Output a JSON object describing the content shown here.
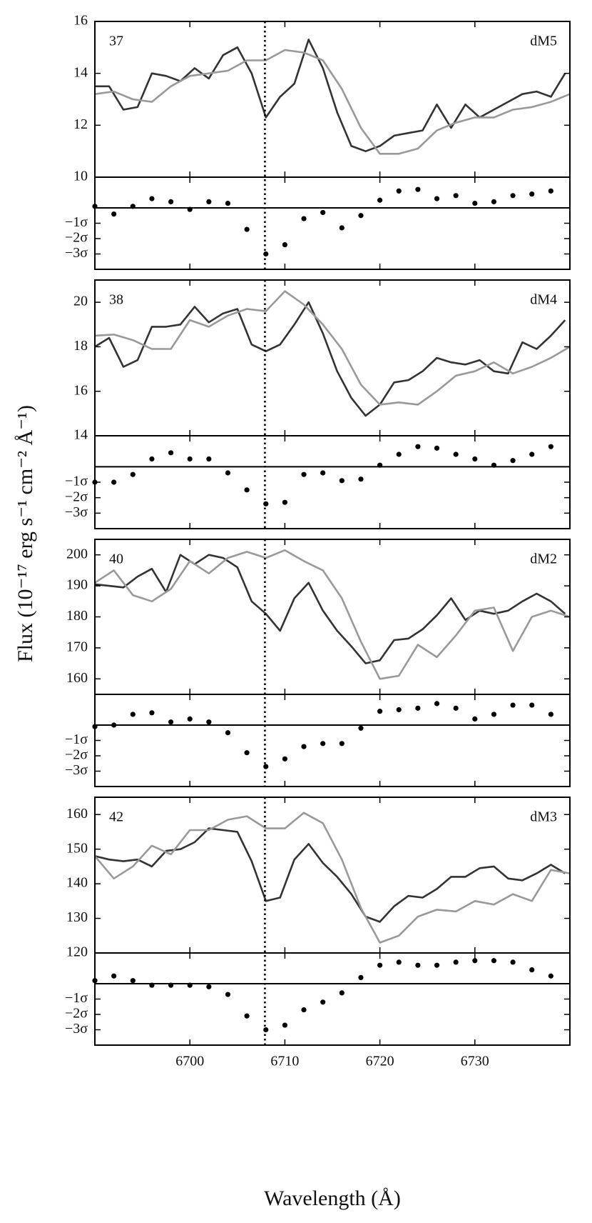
{
  "figure": {
    "xlabel": "Wavelength (Å)",
    "ylabel": "Flux (10⁻¹⁷ erg s⁻¹ cm⁻² Å⁻¹)"
  },
  "chart_data": [
    {
      "type": "line",
      "label": "37",
      "spectral_type": "dM5",
      "xlim": [
        6690,
        6740
      ],
      "ylim": [
        10,
        16
      ],
      "yticks": [
        10,
        12,
        14,
        16
      ],
      "xticks": [
        6700,
        6710,
        6720,
        6730
      ],
      "vline": 6707.9,
      "series": [
        {
          "color": "#333333",
          "x": [
            6690,
            6691.5,
            6693,
            6694.5,
            6696,
            6697.5,
            6699,
            6700.5,
            6702,
            6703.5,
            6705,
            6706.5,
            6708,
            6709.5,
            6711,
            6712.5,
            6714,
            6715.5,
            6717,
            6718.5,
            6720,
            6721.5,
            6723,
            6724.5,
            6726,
            6727.5,
            6729,
            6730.5,
            6732,
            6733.5,
            6735,
            6736.5,
            6738,
            6739.5
          ],
          "values": [
            13.5,
            13.5,
            12.6,
            12.7,
            14.0,
            13.9,
            13.7,
            14.2,
            13.8,
            14.7,
            15.0,
            14.0,
            12.3,
            13.1,
            13.6,
            15.3,
            14.2,
            12.5,
            11.2,
            11.0,
            11.2,
            11.6,
            11.7,
            11.8,
            12.8,
            11.9,
            12.8,
            12.3,
            12.6,
            12.9,
            13.2,
            13.3,
            13.1,
            14.0
          ]
        },
        {
          "color": "#999999",
          "x": [
            6690,
            6692,
            6694,
            6696,
            6698,
            6700,
            6702,
            6704,
            6706,
            6708,
            6710,
            6712,
            6714,
            6716,
            6718,
            6720,
            6722,
            6724,
            6726,
            6728,
            6730,
            6732,
            6734,
            6736,
            6738,
            6740
          ],
          "values": [
            13.2,
            13.3,
            13.0,
            12.9,
            13.5,
            13.9,
            14.0,
            14.1,
            14.5,
            14.5,
            14.9,
            14.8,
            14.5,
            13.4,
            11.9,
            10.9,
            10.9,
            11.1,
            11.8,
            12.1,
            12.3,
            12.3,
            12.6,
            12.7,
            12.9,
            13.2
          ]
        }
      ],
      "residuals": {
        "type": "scatter",
        "color": "#000000",
        "ylim": [
          -4,
          2
        ],
        "yticks": [
          {
            "value": -1,
            "label": "−1σ"
          },
          {
            "value": -2,
            "label": "−2σ"
          },
          {
            "value": -3,
            "label": "−3σ"
          }
        ],
        "x": [
          6690,
          6692,
          6694,
          6696,
          6698,
          6700,
          6702,
          6704,
          6706,
          6708,
          6710,
          6712,
          6714,
          6716,
          6718,
          6720,
          6722,
          6724,
          6726,
          6728,
          6730,
          6732,
          6734,
          6736,
          6738
        ],
        "values": [
          0.1,
          -0.4,
          0.1,
          0.6,
          0.4,
          -0.1,
          0.4,
          0.3,
          -1.4,
          -3.0,
          -2.4,
          -0.7,
          -0.3,
          -1.3,
          -0.5,
          0.5,
          1.1,
          1.2,
          0.6,
          0.8,
          0.3,
          0.4,
          0.8,
          0.9,
          1.1
        ]
      }
    },
    {
      "type": "line",
      "label": "38",
      "spectral_type": "dM4",
      "xlim": [
        6690,
        6740
      ],
      "ylim": [
        14,
        21
      ],
      "yticks": [
        14,
        16,
        18,
        20
      ],
      "xticks": [
        6700,
        6710,
        6720,
        6730
      ],
      "vline": 6707.9,
      "series": [
        {
          "color": "#333333",
          "x": [
            6690,
            6691.5,
            6693,
            6694.5,
            6696,
            6697.5,
            6699,
            6700.5,
            6702,
            6703.5,
            6705,
            6706.5,
            6708,
            6709.5,
            6711,
            6712.5,
            6714,
            6715.5,
            6717,
            6718.5,
            6720,
            6721.5,
            6723,
            6724.5,
            6726,
            6727.5,
            6729,
            6730.5,
            6732,
            6733.5,
            6735,
            6736.5,
            6738,
            6739.5
          ],
          "values": [
            18.0,
            18.4,
            17.1,
            17.4,
            18.9,
            18.9,
            19.0,
            19.8,
            19.1,
            19.5,
            19.7,
            18.1,
            17.8,
            18.1,
            19.0,
            20.0,
            18.6,
            16.9,
            15.7,
            14.9,
            15.4,
            16.4,
            16.5,
            16.9,
            17.5,
            17.3,
            17.2,
            17.4,
            16.9,
            16.8,
            18.2,
            17.9,
            18.5,
            19.2
          ]
        },
        {
          "color": "#999999",
          "x": [
            6690,
            6692,
            6694,
            6696,
            6698,
            6700,
            6702,
            6704,
            6706,
            6708,
            6710,
            6712,
            6714,
            6716,
            6718,
            6720,
            6722,
            6724,
            6726,
            6728,
            6730,
            6732,
            6734,
            6736,
            6738,
            6740
          ],
          "values": [
            18.5,
            18.55,
            18.3,
            17.9,
            17.9,
            19.2,
            18.9,
            19.4,
            19.7,
            19.6,
            20.5,
            19.9,
            19.0,
            17.9,
            16.3,
            15.4,
            15.5,
            15.4,
            16.0,
            16.7,
            16.9,
            17.3,
            16.8,
            17.1,
            17.5,
            18.0
          ]
        }
      ],
      "residuals": {
        "type": "scatter",
        "color": "#000000",
        "ylim": [
          -4,
          2
        ],
        "yticks": [
          {
            "value": -1,
            "label": "−1σ"
          },
          {
            "value": -2,
            "label": "−2σ"
          },
          {
            "value": -3,
            "label": "−3σ"
          }
        ],
        "x": [
          6690,
          6692,
          6694,
          6696,
          6698,
          6700,
          6702,
          6704,
          6706,
          6708,
          6710,
          6712,
          6714,
          6716,
          6718,
          6720,
          6722,
          6724,
          6726,
          6728,
          6730,
          6732,
          6734,
          6736,
          6738
        ],
        "values": [
          -1.0,
          -1.0,
          -0.5,
          0.5,
          0.9,
          0.5,
          0.5,
          -0.4,
          -1.5,
          -2.4,
          -2.3,
          -0.5,
          -0.4,
          -0.9,
          -0.8,
          0.1,
          0.8,
          1.3,
          1.2,
          0.8,
          0.5,
          0.1,
          0.4,
          0.8,
          1.3
        ]
      }
    },
    {
      "type": "line",
      "label": "40",
      "spectral_type": "dM2",
      "xlim": [
        6690,
        6740
      ],
      "ylim": [
        155,
        205
      ],
      "yticks": [
        160,
        170,
        180,
        190,
        200
      ],
      "xticks": [
        6700,
        6710,
        6720,
        6730
      ],
      "vline": 6707.9,
      "series": [
        {
          "color": "#333333",
          "x": [
            6690,
            6691.5,
            6693,
            6694.5,
            6696,
            6697.5,
            6699,
            6700.5,
            6702,
            6703.5,
            6705,
            6706.5,
            6708,
            6709.5,
            6711,
            6712.5,
            6714,
            6715.5,
            6717,
            6718.5,
            6720,
            6721.5,
            6723,
            6724.5,
            6726,
            6727.5,
            6729,
            6730.5,
            6732,
            6733.5,
            6735,
            6736.5,
            6738,
            6739.5
          ],
          "values": [
            190.5,
            190,
            189.5,
            193,
            195.5,
            188,
            200,
            197,
            200,
            199,
            196,
            185,
            181,
            175.5,
            186,
            191,
            182,
            175.5,
            170.5,
            165,
            166,
            172.5,
            173,
            176,
            180.5,
            186,
            179,
            182,
            181,
            182,
            185,
            187.5,
            185,
            181
          ]
        },
        {
          "color": "#999999",
          "x": [
            6690,
            6692,
            6694,
            6696,
            6698,
            6700,
            6702,
            6704,
            6706,
            6708,
            6710,
            6712,
            6714,
            6716,
            6718,
            6720,
            6722,
            6724,
            6726,
            6728,
            6730,
            6732,
            6734,
            6736,
            6738,
            6740
          ],
          "values": [
            191,
            195,
            187,
            185,
            189,
            198,
            194,
            199,
            201,
            199,
            201.5,
            198,
            195,
            186,
            172,
            160,
            161,
            171,
            167,
            174,
            182,
            183,
            169,
            180,
            182,
            180
          ]
        }
      ],
      "residuals": {
        "type": "scatter",
        "color": "#000000",
        "ylim": [
          -4,
          2
        ],
        "yticks": [
          {
            "value": -1,
            "label": "−1σ"
          },
          {
            "value": -2,
            "label": "−2σ"
          },
          {
            "value": -3,
            "label": "−3σ"
          }
        ],
        "x": [
          6690,
          6692,
          6694,
          6696,
          6698,
          6700,
          6702,
          6704,
          6706,
          6708,
          6710,
          6712,
          6714,
          6716,
          6718,
          6720,
          6722,
          6724,
          6726,
          6728,
          6730,
          6732,
          6734,
          6736,
          6738
        ],
        "values": [
          -0.1,
          0,
          0.7,
          0.8,
          0.2,
          0.4,
          0.2,
          -0.5,
          -1.8,
          -2.7,
          -2.2,
          -1.4,
          -1.2,
          -1.2,
          -0.2,
          0.9,
          1.0,
          1.1,
          1.4,
          1.1,
          0.4,
          0.7,
          1.3,
          1.3,
          0.7
        ]
      }
    },
    {
      "type": "line",
      "label": "42",
      "spectral_type": "dM3",
      "xlim": [
        6690,
        6740
      ],
      "ylim": [
        120,
        165
      ],
      "yticks": [
        120,
        130,
        140,
        150,
        160
      ],
      "xticks": [
        6700,
        6710,
        6720,
        6730
      ],
      "vline": 6707.9,
      "series": [
        {
          "color": "#333333",
          "x": [
            6690,
            6691.5,
            6693,
            6694.5,
            6696,
            6697.5,
            6699,
            6700.5,
            6702,
            6703.5,
            6705,
            6706.5,
            6708,
            6709.5,
            6711,
            6712.5,
            6714,
            6715.5,
            6717,
            6718.5,
            6720,
            6721.5,
            6723,
            6724.5,
            6726,
            6727.5,
            6729,
            6730.5,
            6732,
            6733.5,
            6735,
            6736.5,
            6738,
            6739.5
          ],
          "values": [
            148,
            147,
            146.5,
            147,
            145,
            149.5,
            150,
            152,
            156,
            155.5,
            155,
            146.5,
            135,
            136,
            147,
            151.5,
            146,
            142,
            137,
            130.5,
            129,
            133.5,
            136.5,
            136,
            138.5,
            142,
            142,
            144.5,
            145,
            141.5,
            141,
            143,
            145.5,
            143
          ]
        },
        {
          "color": "#999999",
          "x": [
            6690,
            6692,
            6694,
            6696,
            6698,
            6700,
            6702,
            6704,
            6706,
            6708,
            6710,
            6712,
            6714,
            6716,
            6718,
            6720,
            6722,
            6724,
            6726,
            6728,
            6730,
            6732,
            6734,
            6736,
            6738,
            6740
          ],
          "values": [
            148,
            141.5,
            145,
            151,
            148.5,
            155.5,
            155.5,
            158.5,
            159.5,
            156,
            156,
            160.5,
            157.5,
            147,
            133,
            123,
            125,
            130.5,
            132.5,
            132,
            135,
            134,
            137,
            135,
            144,
            143
          ]
        }
      ],
      "residuals": {
        "type": "scatter",
        "color": "#000000",
        "ylim": [
          -4,
          2
        ],
        "yticks": [
          {
            "value": -1,
            "label": "−1σ"
          },
          {
            "value": -2,
            "label": "−2σ"
          },
          {
            "value": -3,
            "label": "−3σ"
          }
        ],
        "x": [
          6690,
          6692,
          6694,
          6696,
          6698,
          6700,
          6702,
          6704,
          6706,
          6708,
          6710,
          6712,
          6714,
          6716,
          6718,
          6720,
          6722,
          6724,
          6726,
          6728,
          6730,
          6732,
          6734,
          6736,
          6738
        ],
        "values": [
          0.2,
          0.5,
          0.2,
          -0.1,
          -0.1,
          -0.1,
          -0.2,
          -0.7,
          -2.1,
          -3.0,
          -2.7,
          -1.7,
          -1.2,
          -0.6,
          0.4,
          1.2,
          1.4,
          1.2,
          1.2,
          1.4,
          1.5,
          1.5,
          1.4,
          0.9,
          0.5
        ]
      }
    }
  ]
}
